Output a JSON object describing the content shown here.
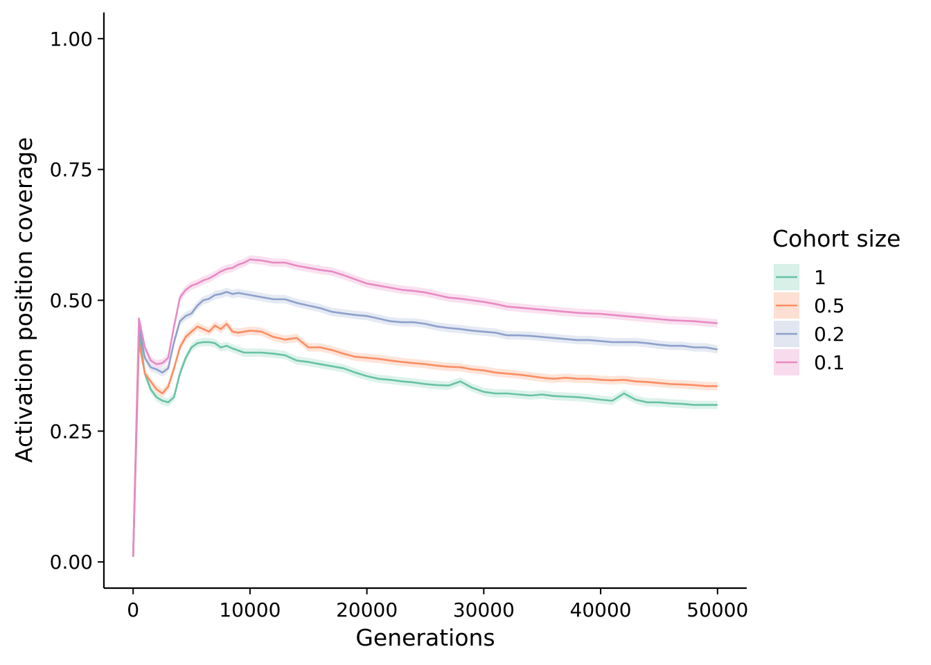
{
  "chart_data": {
    "type": "line",
    "title": "",
    "xlabel": "Generations",
    "ylabel": "Activation position coverage",
    "xlim": [
      -2500,
      52500
    ],
    "ylim": [
      -0.05,
      1.05
    ],
    "xticks": [
      0,
      10000,
      20000,
      30000,
      40000,
      50000
    ],
    "xtick_labels": [
      "0",
      "10000",
      "20000",
      "30000",
      "40000",
      "50000"
    ],
    "yticks": [
      0,
      0.25,
      0.5,
      0.75,
      1.0
    ],
    "ytick_labels": [
      "0.00",
      "0.25",
      "0.50",
      "0.75",
      "1.00"
    ],
    "grid": false,
    "legend": {
      "title": "Cohort size",
      "position": "right"
    },
    "band_halfwidth": 0.008,
    "x": [
      0,
      500,
      1000,
      1500,
      2000,
      2500,
      3000,
      3500,
      4000,
      4500,
      5000,
      5500,
      6000,
      6500,
      7000,
      7500,
      8000,
      8500,
      9000,
      9500,
      10000,
      11000,
      12000,
      13000,
      14000,
      15000,
      16000,
      17000,
      18000,
      19000,
      20000,
      21000,
      22000,
      23000,
      24000,
      25000,
      26000,
      27000,
      28000,
      29000,
      30000,
      31000,
      32000,
      33000,
      34000,
      35000,
      36000,
      37000,
      38000,
      39000,
      40000,
      41000,
      42000,
      43000,
      44000,
      45000,
      46000,
      47000,
      48000,
      49000,
      50000
    ],
    "series": [
      {
        "name": "1",
        "color": "#66c2a5",
        "fill": "#d7f0e8",
        "values": [
          0.01,
          0.44,
          0.36,
          0.33,
          0.315,
          0.308,
          0.305,
          0.315,
          0.36,
          0.39,
          0.41,
          0.418,
          0.42,
          0.42,
          0.418,
          0.41,
          0.413,
          0.408,
          0.404,
          0.4,
          0.4,
          0.4,
          0.398,
          0.395,
          0.385,
          0.382,
          0.378,
          0.374,
          0.37,
          0.362,
          0.355,
          0.35,
          0.348,
          0.345,
          0.343,
          0.34,
          0.338,
          0.337,
          0.345,
          0.333,
          0.325,
          0.322,
          0.322,
          0.32,
          0.318,
          0.32,
          0.317,
          0.316,
          0.315,
          0.313,
          0.31,
          0.308,
          0.322,
          0.31,
          0.305,
          0.305,
          0.303,
          0.302,
          0.3,
          0.3,
          0.3
        ]
      },
      {
        "name": "0.5",
        "color": "#fc8d62",
        "fill": "#fde0d3",
        "values": [
          0.01,
          0.42,
          0.36,
          0.345,
          0.33,
          0.322,
          0.335,
          0.37,
          0.41,
          0.43,
          0.44,
          0.45,
          0.445,
          0.44,
          0.452,
          0.445,
          0.455,
          0.44,
          0.438,
          0.44,
          0.442,
          0.44,
          0.43,
          0.425,
          0.428,
          0.41,
          0.41,
          0.405,
          0.398,
          0.392,
          0.39,
          0.388,
          0.385,
          0.382,
          0.38,
          0.378,
          0.375,
          0.373,
          0.372,
          0.368,
          0.366,
          0.362,
          0.36,
          0.358,
          0.355,
          0.352,
          0.35,
          0.352,
          0.35,
          0.35,
          0.348,
          0.347,
          0.348,
          0.345,
          0.344,
          0.342,
          0.34,
          0.339,
          0.338,
          0.336,
          0.336
        ]
      },
      {
        "name": "0.2",
        "color": "#8da0cb",
        "fill": "#e1e6f1",
        "values": [
          0.01,
          0.45,
          0.39,
          0.372,
          0.368,
          0.362,
          0.37,
          0.42,
          0.46,
          0.47,
          0.475,
          0.49,
          0.5,
          0.503,
          0.51,
          0.512,
          0.516,
          0.512,
          0.514,
          0.512,
          0.51,
          0.506,
          0.502,
          0.502,
          0.495,
          0.49,
          0.485,
          0.478,
          0.475,
          0.472,
          0.47,
          0.465,
          0.46,
          0.458,
          0.458,
          0.455,
          0.45,
          0.447,
          0.445,
          0.442,
          0.44,
          0.438,
          0.433,
          0.433,
          0.432,
          0.43,
          0.428,
          0.426,
          0.424,
          0.424,
          0.422,
          0.42,
          0.42,
          0.42,
          0.418,
          0.415,
          0.413,
          0.413,
          0.41,
          0.41,
          0.406
        ]
      },
      {
        "name": "0.1",
        "color": "#e78ac3",
        "fill": "#f8dced",
        "values": [
          0.01,
          0.465,
          0.41,
          0.385,
          0.378,
          0.38,
          0.39,
          0.45,
          0.505,
          0.52,
          0.528,
          0.532,
          0.538,
          0.542,
          0.548,
          0.555,
          0.56,
          0.562,
          0.568,
          0.572,
          0.578,
          0.576,
          0.572,
          0.572,
          0.566,
          0.562,
          0.558,
          0.555,
          0.548,
          0.54,
          0.532,
          0.528,
          0.524,
          0.52,
          0.518,
          0.515,
          0.51,
          0.505,
          0.503,
          0.5,
          0.497,
          0.493,
          0.488,
          0.486,
          0.484,
          0.482,
          0.48,
          0.478,
          0.476,
          0.475,
          0.474,
          0.472,
          0.47,
          0.468,
          0.466,
          0.464,
          0.462,
          0.461,
          0.46,
          0.458,
          0.456
        ]
      }
    ]
  }
}
